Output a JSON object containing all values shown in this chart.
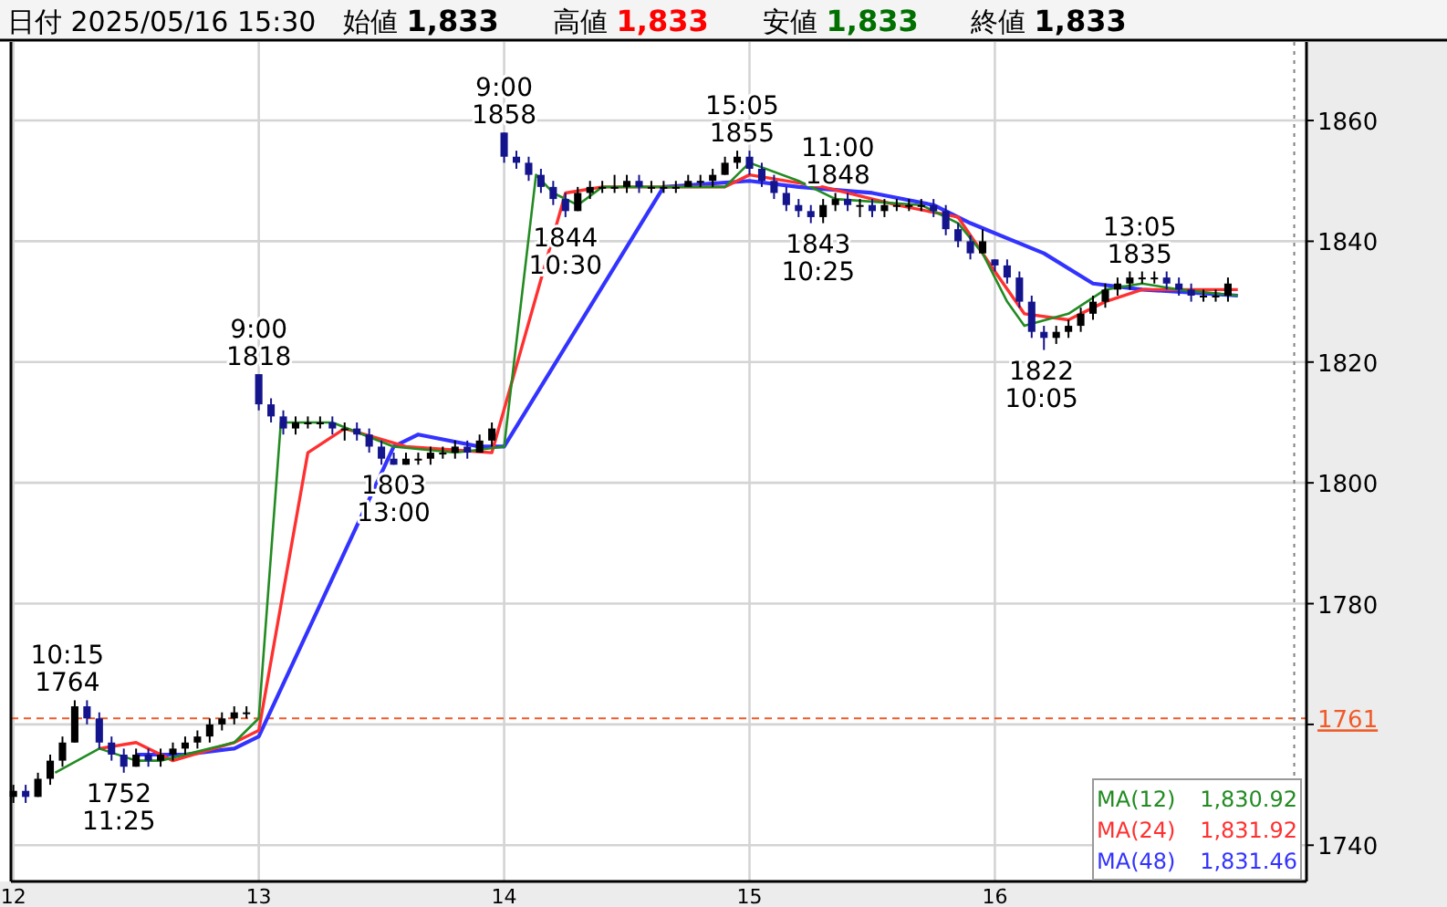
{
  "chart_data": {
    "type": "candlestick",
    "title": "日付 2025/05/16 15:30",
    "annotations": [
      "始値 1,833",
      "高値 1,833",
      "安値 1,833",
      "終値 1,833",
      {
        "text": "10:15\n1764",
        "x": 12.22,
        "y": 1764
      },
      {
        "text": "1752\n11:25",
        "x": 12.43,
        "y": 1752
      },
      {
        "text": "9:00\n1818",
        "x": 13.0,
        "y": 1818
      },
      {
        "text": "1803\n13:00",
        "x": 13.55,
        "y": 1803
      },
      {
        "text": "9:00\n1858",
        "x": 14.0,
        "y": 1858
      },
      {
        "text": "1844\n10:30",
        "x": 14.25,
        "y": 1844
      },
      {
        "text": "15:05\n1855",
        "x": 14.97,
        "y": 1855
      },
      {
        "text": "11:00\n1848",
        "x": 15.36,
        "y": 1848
      },
      {
        "text": "1843\n10:25",
        "x": 15.28,
        "y": 1843
      },
      {
        "text": "1822\n10:05",
        "x": 16.19,
        "y": 1822
      },
      {
        "text": "13:05\n1835",
        "x": 16.59,
        "y": 1835
      }
    ],
    "series": [
      {
        "type": "candlestick",
        "color": "#14148c",
        "colors": [
          "#000000",
          "#14148c",
          "#000000",
          "#000000",
          "#000000",
          "#000000",
          "#14148c",
          "#14148c",
          "#14148c",
          "#14148c",
          "#000000",
          "#14148c",
          "#000000",
          "#000000",
          "#000000",
          "#000000",
          "#000000",
          "#000000",
          "#000000",
          "#000000",
          "#14148c",
          "#14148c",
          "#14148c",
          "#000000",
          "#000000",
          "#000000",
          "#14148c",
          "#000000",
          "#14148c",
          "#14148c",
          "#14148c",
          "#14148c",
          "#000000",
          "#000000",
          "#000000",
          "#000000",
          "#000000",
          "#14148c",
          "#000000",
          "#000000",
          "#14148c",
          "#14148c",
          "#14148c",
          "#14148c",
          "#14148c",
          "#14148c",
          "#000000",
          "#000000",
          "#000000",
          "#000000",
          "#000000",
          "#14148c",
          "#000000",
          "#000000",
          "#000000",
          "#000000",
          "#000000",
          "#000000",
          "#000000",
          "#000000",
          "#14148c",
          "#14148c",
          "#14148c",
          "#14148c",
          "#14148c",
          "#14148c",
          "#000000",
          "#000000",
          "#14148c",
          "#000000",
          "#14148c",
          "#000000",
          "#000000",
          "#000000",
          "#000000",
          "#14148c",
          "#14148c",
          "#14148c",
          "#14148c",
          "#000000",
          "#14148c",
          "#14148c",
          "#14148c",
          "#14148c",
          "#14148c",
          "#000000",
          "#000000",
          "#000000",
          "#000000",
          "#000000",
          "#000000",
          "#000000",
          "#000000",
          "#000000",
          "#14148c",
          "#14148c",
          "#14148c",
          "#000000",
          "#000000",
          "#000000"
        ],
        "x": [
          12,
          12.05,
          12.1,
          12.15,
          12.2,
          12.25,
          12.3,
          12.35,
          12.4,
          12.45,
          12.5,
          12.55,
          12.6,
          12.65,
          12.7,
          12.75,
          12.8,
          12.85,
          12.9,
          12.95,
          13,
          13.05,
          13.1,
          13.15,
          13.2,
          13.25,
          13.3,
          13.35,
          13.4,
          13.45,
          13.5,
          13.55,
          13.6,
          13.65,
          13.7,
          13.75,
          13.8,
          13.85,
          13.9,
          13.95,
          14,
          14.05,
          14.1,
          14.15,
          14.2,
          14.25,
          14.3,
          14.35,
          14.4,
          14.45,
          14.5,
          14.55,
          14.6,
          14.65,
          14.7,
          14.75,
          14.8,
          14.85,
          14.9,
          14.95,
          15,
          15.05,
          15.1,
          15.15,
          15.2,
          15.25,
          15.3,
          15.35,
          15.4,
          15.45,
          15.5,
          15.55,
          15.6,
          15.65,
          15.7,
          15.75,
          15.8,
          15.85,
          15.9,
          15.95,
          16,
          16.05,
          16.1,
          16.15,
          16.2,
          16.25,
          16.3,
          16.35,
          16.4,
          16.45,
          16.5,
          16.55,
          16.6,
          16.65,
          16.7,
          16.75,
          16.8,
          16.85,
          16.9,
          16.95
        ],
        "ohlc": [
          [
            1748,
            1750,
            1747,
            1749
          ],
          [
            1749,
            1750,
            1747,
            1748
          ],
          [
            1748,
            1752,
            1748,
            1751
          ],
          [
            1751,
            1755,
            1750,
            1754
          ],
          [
            1754,
            1758,
            1753,
            1757
          ],
          [
            1757,
            1764,
            1757,
            1763
          ],
          [
            1763,
            1764,
            1760,
            1761
          ],
          [
            1761,
            1762,
            1756,
            1757
          ],
          [
            1757,
            1758,
            1754,
            1755
          ],
          [
            1755,
            1756,
            1752,
            1753
          ],
          [
            1753,
            1756,
            1753,
            1755
          ],
          [
            1755,
            1756,
            1753,
            1754
          ],
          [
            1754,
            1756,
            1753,
            1755
          ],
          [
            1755,
            1757,
            1754,
            1756
          ],
          [
            1756,
            1758,
            1755,
            1757
          ],
          [
            1757,
            1759,
            1756,
            1758
          ],
          [
            1758,
            1761,
            1757,
            1760
          ],
          [
            1760,
            1762,
            1759,
            1761
          ],
          [
            1761,
            1763,
            1760,
            1762
          ],
          [
            1762,
            1763,
            1761,
            1762
          ],
          [
            1818,
            1818,
            1812,
            1813
          ],
          [
            1813,
            1814,
            1810,
            1811
          ],
          [
            1811,
            1812,
            1808,
            1809
          ],
          [
            1809,
            1811,
            1808,
            1810
          ],
          [
            1810,
            1811,
            1809,
            1810
          ],
          [
            1810,
            1811,
            1809,
            1810
          ],
          [
            1810,
            1811,
            1808,
            1809
          ],
          [
            1809,
            1810,
            1807,
            1809
          ],
          [
            1809,
            1810,
            1807,
            1808
          ],
          [
            1808,
            1809,
            1805,
            1806
          ],
          [
            1806,
            1807,
            1803,
            1804
          ],
          [
            1804,
            1805,
            1803,
            1803
          ],
          [
            1803,
            1805,
            1803,
            1804
          ],
          [
            1804,
            1805,
            1803,
            1804
          ],
          [
            1804,
            1806,
            1803,
            1805
          ],
          [
            1805,
            1806,
            1804,
            1805
          ],
          [
            1805,
            1807,
            1804,
            1806
          ],
          [
            1806,
            1807,
            1804,
            1805
          ],
          [
            1805,
            1808,
            1805,
            1807
          ],
          [
            1807,
            1810,
            1806,
            1809
          ],
          [
            1858,
            1858,
            1853,
            1854
          ],
          [
            1854,
            1855,
            1852,
            1853
          ],
          [
            1853,
            1854,
            1850,
            1851
          ],
          [
            1851,
            1852,
            1848,
            1849
          ],
          [
            1849,
            1850,
            1846,
            1847
          ],
          [
            1847,
            1848,
            1844,
            1845
          ],
          [
            1845,
            1849,
            1845,
            1848
          ],
          [
            1848,
            1850,
            1847,
            1849
          ],
          [
            1849,
            1850,
            1848,
            1849
          ],
          [
            1849,
            1851,
            1848,
            1849
          ],
          [
            1849,
            1851,
            1848,
            1850
          ],
          [
            1850,
            1851,
            1848,
            1849
          ],
          [
            1849,
            1850,
            1848,
            1849
          ],
          [
            1849,
            1850,
            1848,
            1849
          ],
          [
            1849,
            1850,
            1848,
            1849
          ],
          [
            1849,
            1851,
            1849,
            1850
          ],
          [
            1850,
            1851,
            1849,
            1850
          ],
          [
            1850,
            1852,
            1849,
            1851
          ],
          [
            1851,
            1854,
            1851,
            1853
          ],
          [
            1853,
            1855,
            1852,
            1854
          ],
          [
            1854,
            1855,
            1851,
            1852
          ],
          [
            1852,
            1853,
            1849,
            1850
          ],
          [
            1850,
            1851,
            1847,
            1848
          ],
          [
            1848,
            1849,
            1845,
            1846
          ],
          [
            1846,
            1847,
            1844,
            1845
          ],
          [
            1845,
            1846,
            1843,
            1844
          ],
          [
            1844,
            1847,
            1843,
            1846
          ],
          [
            1846,
            1848,
            1845,
            1847
          ],
          [
            1847,
            1848,
            1845,
            1846
          ],
          [
            1846,
            1847,
            1844,
            1846
          ],
          [
            1846,
            1847,
            1844,
            1845
          ],
          [
            1845,
            1847,
            1844,
            1846
          ],
          [
            1846,
            1847,
            1845,
            1846
          ],
          [
            1846,
            1847,
            1845,
            1846
          ],
          [
            1846,
            1847,
            1845,
            1846
          ],
          [
            1846,
            1847,
            1844,
            1845
          ],
          [
            1845,
            1846,
            1841,
            1842
          ],
          [
            1842,
            1843,
            1839,
            1840
          ],
          [
            1840,
            1841,
            1837,
            1838
          ],
          [
            1838,
            1842,
            1838,
            1840
          ],
          [
            1837,
            1837,
            1835,
            1836
          ],
          [
            1836,
            1837,
            1833,
            1834
          ],
          [
            1834,
            1835,
            1829,
            1830
          ],
          [
            1830,
            1831,
            1824,
            1825
          ],
          [
            1825,
            1826,
            1822,
            1824
          ],
          [
            1824,
            1826,
            1823,
            1825
          ],
          [
            1825,
            1827,
            1824,
            1826
          ],
          [
            1826,
            1829,
            1825,
            1828
          ],
          [
            1828,
            1831,
            1827,
            1830
          ],
          [
            1830,
            1833,
            1829,
            1832
          ],
          [
            1832,
            1834,
            1831,
            1833
          ],
          [
            1833,
            1835,
            1832,
            1834
          ],
          [
            1834,
            1835,
            1833,
            1834
          ],
          [
            1834,
            1835,
            1833,
            1834
          ],
          [
            1834,
            1835,
            1832,
            1833
          ],
          [
            1833,
            1834,
            1831,
            1832
          ],
          [
            1832,
            1833,
            1830,
            1831
          ],
          [
            1831,
            1832,
            1830,
            1831
          ],
          [
            1831,
            1832,
            1830,
            1831
          ],
          [
            1831,
            1834,
            1830,
            1833
          ]
        ]
      },
      {
        "type": "line",
        "name": "MA(12) 1,830.92",
        "color": "#228b22",
        "x": [
          12.17,
          12.35,
          12.5,
          12.6,
          12.9,
          13.0,
          13.09,
          13.3,
          13.55,
          13.8,
          14.0,
          14.13,
          14.2,
          14.3,
          14.4,
          14.9,
          15.0,
          15.2,
          15.35,
          15.7,
          15.85,
          15.95,
          16.05,
          16.12,
          16.3,
          16.45,
          16.6,
          16.75,
          16.99
        ],
        "values": [
          1752,
          1756,
          1754,
          1754,
          1757,
          1761,
          1810,
          1810,
          1806,
          1805,
          1806,
          1851,
          1848,
          1846,
          1849,
          1849,
          1853,
          1850,
          1847,
          1846,
          1843,
          1838,
          1830,
          1826,
          1828,
          1832,
          1833,
          1832,
          1831
        ]
      },
      {
        "type": "line",
        "name": "MA(24) 1,831.92",
        "color": "#ff3030",
        "x": [
          12.35,
          12.5,
          12.65,
          12.9,
          13.0,
          13.2,
          13.35,
          13.6,
          13.95,
          14.25,
          14.4,
          14.9,
          15.0,
          15.3,
          15.6,
          15.85,
          16.0,
          16.12,
          16.3,
          16.45,
          16.6,
          16.99
        ],
        "values": [
          1756,
          1757,
          1754,
          1757,
          1759,
          1805,
          1809,
          1806,
          1805,
          1848,
          1849,
          1849,
          1851,
          1849,
          1846,
          1844,
          1835,
          1828,
          1827,
          1830,
          1832,
          1832
        ]
      },
      {
        "type": "line",
        "name": "MA(48) 1,831.46",
        "color": "#3333ff",
        "x": [
          12.5,
          12.7,
          12.9,
          13.0,
          13.55,
          13.65,
          13.9,
          14.0,
          14.65,
          15.0,
          15.2,
          15.5,
          15.75,
          15.9,
          16.2,
          16.4,
          16.6,
          16.99
        ],
        "values": [
          1755,
          1755,
          1756,
          1758,
          1806,
          1808,
          1806,
          1806,
          1849,
          1850,
          1849,
          1848,
          1846,
          1843,
          1838,
          1833,
          1832,
          1831
        ]
      }
    ],
    "xlim": [
      11.99,
      17.27
    ],
    "xticks": [
      12,
      13,
      14,
      15,
      16
    ],
    "ylim": [
      1734,
      1873
    ],
    "yticks": [
      1740,
      {
        "value": 1760,
        "label": null
      },
      1780,
      1800,
      1820,
      1840,
      1860
    ],
    "ref_lines": [
      {
        "axis": "y",
        "value": 1761,
        "label": "1761",
        "color": "#f05a28",
        "line_style": "dashed"
      },
      {
        "axis": "x",
        "value": 17.22,
        "color": "#808080",
        "line_style": "dotted"
      }
    ],
    "grid": true,
    "legend": "bottom right"
  }
}
